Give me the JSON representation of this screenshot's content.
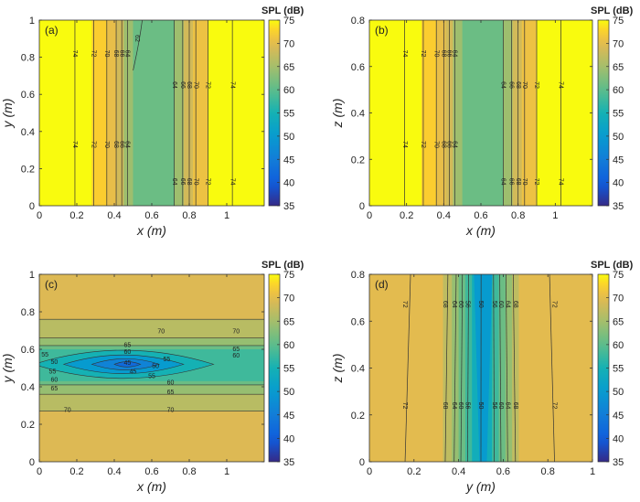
{
  "chart_data": [
    {
      "type": "heatmap",
      "panel_label": "(a)",
      "xlabel": "x (m)",
      "ylabel": "y (m)",
      "xlim": [
        0,
        1.2
      ],
      "ylim": [
        0,
        1.0
      ],
      "xticks": [
        "0",
        "0.2",
        "0.4",
        "0.6",
        "0.8",
        "1"
      ],
      "yticks": [
        "0",
        "0.2",
        "0.4",
        "0.6",
        "0.8",
        "1"
      ],
      "colorbar": {
        "title": "SPL (dB)",
        "range": [
          35,
          75
        ],
        "ticks": [
          "35",
          "40",
          "45",
          "50",
          "55",
          "60",
          "65",
          "70",
          "75"
        ]
      },
      "contour_bands": [
        {
          "from": 0.0,
          "to": 0.28,
          "level": 75
        },
        {
          "from": 0.28,
          "to": 0.36,
          "level": 72.5
        },
        {
          "from": 0.36,
          "to": 0.41,
          "level": 70.5
        },
        {
          "from": 0.41,
          "to": 0.45,
          "level": 68.5
        },
        {
          "from": 0.45,
          "to": 0.5,
          "level": 64.5
        },
        {
          "from": 0.5,
          "to": 0.72,
          "level": 61
        },
        {
          "from": 0.72,
          "to": 0.77,
          "level": 64.5
        },
        {
          "from": 0.77,
          "to": 0.82,
          "level": 68.5
        },
        {
          "from": 0.82,
          "to": 0.9,
          "level": 71
        },
        {
          "from": 0.9,
          "to": 1.2,
          "level": 75
        }
      ],
      "contour_lines": [
        {
          "value": "74",
          "x": 0.19
        },
        {
          "value": "72",
          "x": 0.29
        },
        {
          "value": "70",
          "x": 0.36
        },
        {
          "value": "68",
          "x": 0.41
        },
        {
          "value": "66",
          "x": 0.44
        },
        {
          "value": "64",
          "x": 0.47
        },
        {
          "value": "62",
          "x": 0.52
        },
        {
          "value": "64",
          "x": 0.72
        },
        {
          "value": "66",
          "x": 0.765
        },
        {
          "value": "68",
          "x": 0.8
        },
        {
          "value": "70",
          "x": 0.835
        },
        {
          "value": "72",
          "x": 0.9
        },
        {
          "value": "74",
          "x": 1.03
        }
      ]
    },
    {
      "type": "heatmap",
      "panel_label": "(b)",
      "xlabel": "x (m)",
      "ylabel": "z (m)",
      "xlim": [
        0,
        1.2
      ],
      "ylim": [
        0,
        0.8
      ],
      "xticks": [
        "0",
        "0.2",
        "0.4",
        "0.6",
        "0.8",
        "1"
      ],
      "yticks": [
        "0",
        "0.2",
        "0.4",
        "0.6",
        "0.8"
      ],
      "colorbar": {
        "title": "SPL (dB)",
        "range": [
          35,
          75
        ],
        "ticks": [
          "35",
          "40",
          "45",
          "50",
          "55",
          "60",
          "65",
          "70",
          "75"
        ]
      },
      "contour_bands": [
        {
          "from": 0.0,
          "to": 0.28,
          "level": 75
        },
        {
          "from": 0.28,
          "to": 0.36,
          "level": 72.5
        },
        {
          "from": 0.36,
          "to": 0.41,
          "level": 70.5
        },
        {
          "from": 0.41,
          "to": 0.45,
          "level": 68.5
        },
        {
          "from": 0.45,
          "to": 0.5,
          "level": 64.5
        },
        {
          "from": 0.5,
          "to": 0.72,
          "level": 61
        },
        {
          "from": 0.72,
          "to": 0.77,
          "level": 64.5
        },
        {
          "from": 0.77,
          "to": 0.82,
          "level": 68.5
        },
        {
          "from": 0.82,
          "to": 0.9,
          "level": 71
        },
        {
          "from": 0.9,
          "to": 1.2,
          "level": 75
        }
      ],
      "contour_lines": [
        {
          "value": "74",
          "x": 0.19
        },
        {
          "value": "72",
          "x": 0.29
        },
        {
          "value": "70",
          "x": 0.36
        },
        {
          "value": "68",
          "x": 0.4
        },
        {
          "value": "66",
          "x": 0.43
        },
        {
          "value": "64",
          "x": 0.46
        },
        {
          "value": "64",
          "x": 0.72
        },
        {
          "value": "66",
          "x": 0.765
        },
        {
          "value": "68",
          "x": 0.8
        },
        {
          "value": "70",
          "x": 0.835
        },
        {
          "value": "72",
          "x": 0.9
        },
        {
          "value": "74",
          "x": 1.03
        }
      ]
    },
    {
      "type": "heatmap",
      "panel_label": "(c)",
      "xlabel": "x (m)",
      "ylabel": "y (m)",
      "xlim": [
        0,
        1.2
      ],
      "ylim": [
        0,
        1.0
      ],
      "xticks": [
        "0",
        "0.2",
        "0.4",
        "0.6",
        "0.8",
        "1"
      ],
      "yticks": [
        "0",
        "0.2",
        "0.4",
        "0.6",
        "0.8",
        "1"
      ],
      "colorbar": {
        "title": "SPL (dB)",
        "range": [
          35,
          75
        ],
        "ticks": [
          "35",
          "40",
          "45",
          "50",
          "55",
          "60",
          "65",
          "70",
          "75"
        ]
      },
      "contour_lines": [
        {
          "value": "70",
          "x": 0.65,
          "y": 0.695
        },
        {
          "value": "70",
          "x": 1.05,
          "y": 0.695
        },
        {
          "value": "65",
          "x": 0.47,
          "y": 0.62
        },
        {
          "value": "65",
          "x": 1.05,
          "y": 0.6
        },
        {
          "value": "60",
          "x": 0.47,
          "y": 0.585
        },
        {
          "value": "60",
          "x": 1.05,
          "y": 0.565
        },
        {
          "value": "55",
          "x": 0.03,
          "y": 0.57
        },
        {
          "value": "55",
          "x": 0.68,
          "y": 0.545
        },
        {
          "value": "50",
          "x": 0.08,
          "y": 0.53
        },
        {
          "value": "50",
          "x": 0.62,
          "y": 0.51
        },
        {
          "value": "45",
          "x": 0.47,
          "y": 0.525
        },
        {
          "value": "45",
          "x": 0.5,
          "y": 0.48
        },
        {
          "value": "55",
          "x": 0.07,
          "y": 0.48
        },
        {
          "value": "55",
          "x": 0.6,
          "y": 0.455
        },
        {
          "value": "60",
          "x": 0.08,
          "y": 0.435
        },
        {
          "value": "60",
          "x": 0.7,
          "y": 0.42
        },
        {
          "value": "65",
          "x": 0.08,
          "y": 0.39
        },
        {
          "value": "65",
          "x": 0.7,
          "y": 0.37
        },
        {
          "value": "70",
          "x": 0.15,
          "y": 0.275
        },
        {
          "value": "70",
          "x": 0.7,
          "y": 0.275
        }
      ]
    },
    {
      "type": "heatmap",
      "panel_label": "(d)",
      "xlabel": "y (m)",
      "ylabel": "z (m)",
      "xlim": [
        0,
        1.0
      ],
      "ylim": [
        0,
        0.8
      ],
      "xticks": [
        "0",
        "0.2",
        "0.4",
        "0.6",
        "0.8",
        "1"
      ],
      "yticks": [
        "0",
        "0.2",
        "0.4",
        "0.6",
        "0.8"
      ],
      "colorbar": {
        "title": "SPL (dB)",
        "range": [
          35,
          75
        ],
        "ticks": [
          "35",
          "40",
          "45",
          "50",
          "55",
          "60",
          "65",
          "70",
          "75"
        ]
      },
      "contour_bands": [
        {
          "from": 0.0,
          "to": 0.33,
          "level": 70
        },
        {
          "from": 0.33,
          "to": 0.37,
          "level": 67
        },
        {
          "from": 0.37,
          "to": 0.4,
          "level": 64
        },
        {
          "from": 0.4,
          "to": 0.43,
          "level": 61
        },
        {
          "from": 0.43,
          "to": 0.46,
          "level": 58
        },
        {
          "from": 0.46,
          "to": 0.5,
          "level": 54
        },
        {
          "from": 0.5,
          "to": 0.52,
          "level": 52
        },
        {
          "from": 0.52,
          "to": 0.55,
          "level": 54
        },
        {
          "from": 0.55,
          "to": 0.58,
          "level": 58
        },
        {
          "from": 0.58,
          "to": 0.61,
          "level": 61
        },
        {
          "from": 0.61,
          "to": 0.64,
          "level": 64
        },
        {
          "from": 0.64,
          "to": 0.67,
          "level": 67
        },
        {
          "from": 0.67,
          "to": 1.0,
          "level": 70
        }
      ],
      "contour_lines": [
        {
          "value": "72",
          "x": 0.16
        },
        {
          "value": "68",
          "x": 0.34
        },
        {
          "value": "64",
          "x": 0.38
        },
        {
          "value": "60",
          "x": 0.41
        },
        {
          "value": "56",
          "x": 0.44
        },
        {
          "value": "50",
          "x": 0.5
        },
        {
          "value": "56",
          "x": 0.56
        },
        {
          "value": "60",
          "x": 0.59
        },
        {
          "value": "64",
          "x": 0.62
        },
        {
          "value": "68",
          "x": 0.655
        },
        {
          "value": "72",
          "x": 0.83
        }
      ]
    }
  ]
}
